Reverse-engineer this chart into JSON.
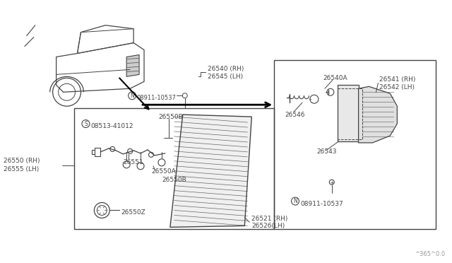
{
  "bg_color": "#ffffff",
  "line_color": "#444444",
  "text_color": "#444444",
  "watermark": "^365^0.0",
  "labels": {
    "26540_RH": "26540 (RH)",
    "26545_LH": "26545 (LH)",
    "26540A": "26540A",
    "26541_RH": "26541 (RH)",
    "26542_LH": "26542 (LH)",
    "26546": "26546",
    "26543": "26543",
    "N08911_top": "08911-10537",
    "N08911_bot": "08911-10537",
    "08513": "08513-41012",
    "26550B_top": "26550B",
    "26551": "26551",
    "26550A": "26550A",
    "26550B_bot": "26550B",
    "26550Z": "26550Z",
    "26521_RH": "26521 (RH)",
    "26526_LH": "26526(LH)",
    "26550_RH": "26550 (RH)",
    "26555_LH": "26555 (LH)"
  }
}
